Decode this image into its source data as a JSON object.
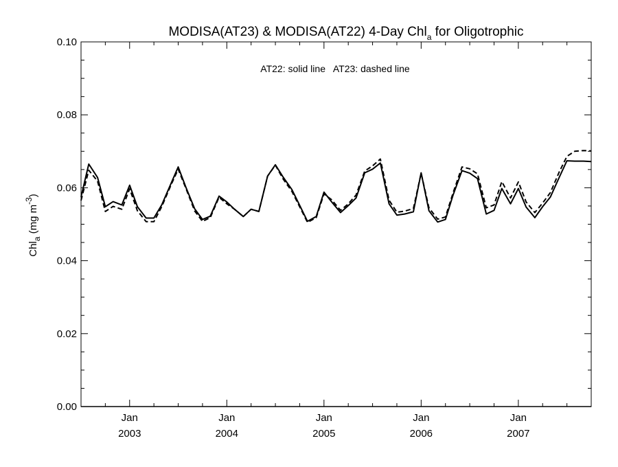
{
  "chart_data": {
    "type": "line",
    "title": {
      "prefix": "MODISA(AT23) & MODISA(AT22) 4-Day Chl",
      "subscript": "a",
      "suffix": " for Oligotrophic"
    },
    "ylabel": {
      "prefix": "Chl",
      "subscript": "a",
      "middle": " (mg m",
      "superscript": "-3",
      "suffix": ")"
    },
    "annotation": "AT22: solid line   AT23: dashed line",
    "ylim": [
      0.0,
      0.1
    ],
    "yticks": [
      {
        "value": 0.0,
        "label": "0.00"
      },
      {
        "value": 0.02,
        "label": "0.02"
      },
      {
        "value": 0.04,
        "label": "0.04"
      },
      {
        "value": 0.06,
        "label": "0.06"
      },
      {
        "value": 0.08,
        "label": "0.08"
      },
      {
        "value": 0.1,
        "label": "0.10"
      }
    ],
    "xlim": [
      2002.5,
      2007.75
    ],
    "xticks": [
      {
        "value": 2003.0,
        "month": "Jan",
        "year": "2003"
      },
      {
        "value": 2004.0,
        "month": "Jan",
        "year": "2004"
      },
      {
        "value": 2005.0,
        "month": "Jan",
        "year": "2005"
      },
      {
        "value": 2006.0,
        "month": "Jan",
        "year": "2006"
      },
      {
        "value": 2007.0,
        "month": "Jan",
        "year": "2007"
      }
    ],
    "xminor": [
      2002.5,
      2002.75,
      2003.25,
      2003.5,
      2003.75,
      2004.25,
      2004.5,
      2004.75,
      2005.25,
      2005.5,
      2005.75,
      2006.25,
      2006.5,
      2006.75,
      2007.25,
      2007.5,
      2007.75
    ],
    "series": [
      {
        "name": "AT22",
        "dash": "solid",
        "x": [
          2002.5,
          2002.58,
          2002.67,
          2002.75,
          2002.83,
          2002.92,
          2003.0,
          2003.08,
          2003.17,
          2003.25,
          2003.33,
          2003.42,
          2003.5,
          2003.58,
          2003.67,
          2003.75,
          2003.83,
          2003.92,
          2004.0,
          2004.08,
          2004.17,
          2004.25,
          2004.33,
          2004.42,
          2004.5,
          2004.58,
          2004.67,
          2004.75,
          2004.83,
          2004.92,
          2005.0,
          2005.08,
          2005.17,
          2005.25,
          2005.33,
          2005.42,
          2005.5,
          2005.58,
          2005.67,
          2005.75,
          2005.83,
          2005.92,
          2006.0,
          2006.08,
          2006.17,
          2006.25,
          2006.33,
          2006.42,
          2006.5,
          2006.58,
          2006.67,
          2006.75,
          2006.83,
          2006.92,
          2007.0,
          2007.08,
          2007.17,
          2007.25,
          2007.33,
          2007.42,
          2007.5,
          2007.58,
          2007.67,
          2007.75
        ],
        "y": [
          0.0575,
          0.0665,
          0.0628,
          0.0548,
          0.0562,
          0.0553,
          0.0607,
          0.0548,
          0.0517,
          0.0517,
          0.0553,
          0.0608,
          0.0657,
          0.0601,
          0.0542,
          0.0513,
          0.0522,
          0.0577,
          0.0561,
          0.0541,
          0.0521,
          0.0541,
          0.0535,
          0.0632,
          0.0663,
          0.0629,
          0.0595,
          0.0552,
          0.0508,
          0.0521,
          0.0588,
          0.0561,
          0.0532,
          0.0551,
          0.0572,
          0.0641,
          0.0651,
          0.0668,
          0.0556,
          0.0525,
          0.0528,
          0.0534,
          0.0641,
          0.0537,
          0.0506,
          0.0513,
          0.0581,
          0.0647,
          0.064,
          0.0625,
          0.0528,
          0.0538,
          0.0598,
          0.0556,
          0.0598,
          0.0547,
          0.0518,
          0.0548,
          0.0575,
          0.0628,
          0.0674,
          0.0673,
          0.0673,
          0.0672
        ]
      },
      {
        "name": "AT23",
        "dash": "dashed",
        "x": [
          2002.5,
          2002.58,
          2002.67,
          2002.75,
          2002.83,
          2002.92,
          2003.0,
          2003.08,
          2003.17,
          2003.25,
          2003.33,
          2003.42,
          2003.5,
          2003.58,
          2003.67,
          2003.75,
          2003.83,
          2003.92,
          2004.0,
          2004.08,
          2004.17,
          2004.25,
          2004.33,
          2004.42,
          2004.5,
          2004.58,
          2004.67,
          2004.75,
          2004.83,
          2004.92,
          2005.0,
          2005.08,
          2005.17,
          2005.25,
          2005.33,
          2005.42,
          2005.5,
          2005.58,
          2005.67,
          2005.75,
          2005.83,
          2005.92,
          2006.0,
          2006.08,
          2006.17,
          2006.25,
          2006.33,
          2006.42,
          2006.5,
          2006.58,
          2006.67,
          2006.75,
          2006.83,
          2006.92,
          2007.0,
          2007.08,
          2007.17,
          2007.25,
          2007.33,
          2007.42,
          2007.5,
          2007.58,
          2007.67,
          2007.75
        ],
        "y": [
          0.0565,
          0.0648,
          0.0618,
          0.0535,
          0.0549,
          0.0541,
          0.0597,
          0.0537,
          0.0507,
          0.0507,
          0.0548,
          0.0604,
          0.0651,
          0.0598,
          0.0536,
          0.0508,
          0.0518,
          0.0574,
          0.0556,
          0.0541,
          0.0521,
          0.0541,
          0.0535,
          0.0632,
          0.0662,
          0.0624,
          0.059,
          0.0548,
          0.0505,
          0.0518,
          0.0583,
          0.0567,
          0.0538,
          0.0556,
          0.058,
          0.0646,
          0.066,
          0.0679,
          0.0566,
          0.0533,
          0.0536,
          0.0543,
          0.064,
          0.0545,
          0.0514,
          0.052,
          0.0587,
          0.0657,
          0.0652,
          0.0638,
          0.0545,
          0.0553,
          0.0617,
          0.0572,
          0.0616,
          0.0561,
          0.0532,
          0.0558,
          0.0587,
          0.0643,
          0.0686,
          0.07,
          0.0702,
          0.0701
        ]
      }
    ],
    "grid": false
  }
}
